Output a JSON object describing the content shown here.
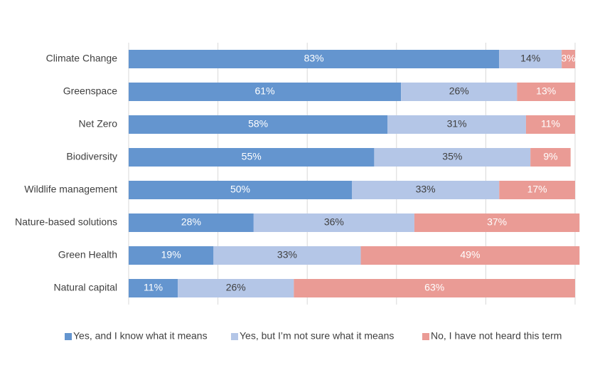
{
  "chart_data": {
    "type": "stacked-bar-horizontal",
    "categories": [
      "Climate Change",
      "Greenspace",
      "Net Zero",
      "Biodiversity",
      "Wildlife management",
      "Nature-based solutions",
      "Green Health",
      "Natural capital"
    ],
    "series": [
      {
        "name": "Yes, and I know what it means",
        "color": "#6495cf",
        "values": [
          83,
          61,
          58,
          55,
          50,
          28,
          19,
          11
        ],
        "value_labels": [
          "83%",
          "61%",
          "58%",
          "55%",
          "50%",
          "28%",
          "19%",
          "11%"
        ]
      },
      {
        "name": "Yes, but I’m not sure what it means",
        "color": "#b4c6e7",
        "values": [
          14,
          26,
          31,
          35,
          33,
          36,
          33,
          26
        ],
        "value_labels": [
          "14%",
          "26%",
          "31%",
          "35%",
          "33%",
          "36%",
          "33%",
          "26%"
        ]
      },
      {
        "name": "No, I have not heard this term",
        "color": "#ea9b95",
        "values": [
          3,
          13,
          11,
          9,
          17,
          37,
          49,
          63
        ],
        "value_labels": [
          "3%",
          "13%",
          "11%",
          "9%",
          "17%",
          "37%",
          "49%",
          "63%"
        ]
      }
    ],
    "xlim": [
      0,
      100
    ],
    "xticks": [
      0,
      20,
      40,
      60,
      80,
      100
    ],
    "grid": true,
    "legend": "bottom"
  }
}
